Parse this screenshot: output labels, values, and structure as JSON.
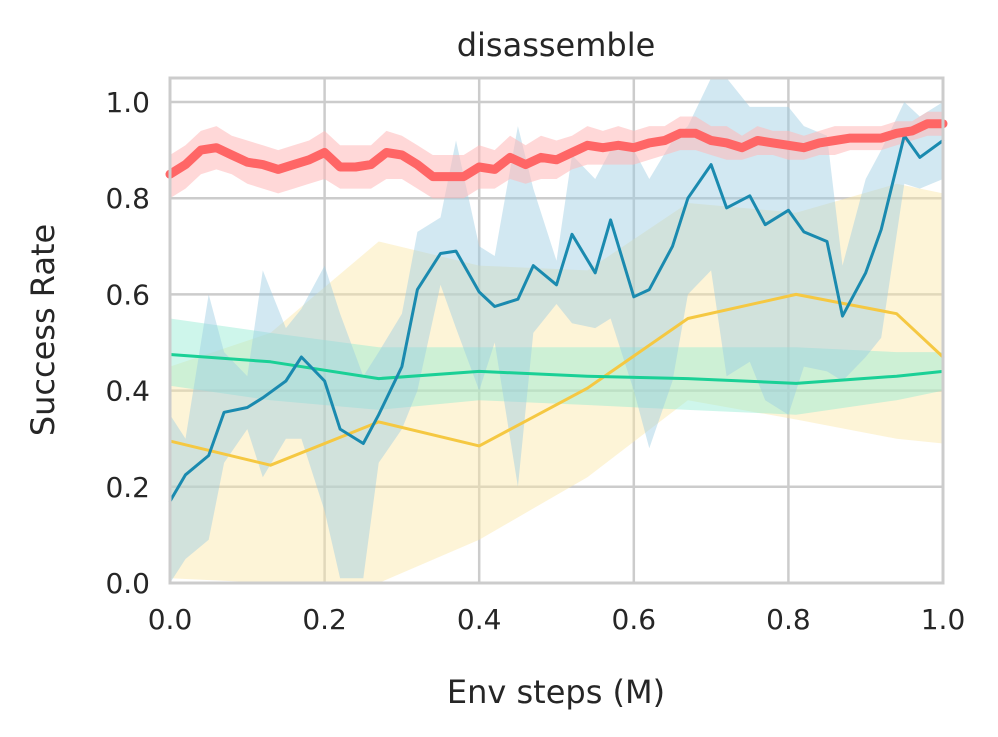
{
  "chart_data": {
    "type": "line",
    "title": "disassemble",
    "xlabel": "Env steps (M)",
    "ylabel": "Success Rate",
    "xlim": [
      0,
      1
    ],
    "ylim": [
      0,
      1.05
    ],
    "xticks": [
      "0.0",
      "0.2",
      "0.4",
      "0.6",
      "0.8",
      "1.0"
    ],
    "yticks": [
      "0.0",
      "0.2",
      "0.4",
      "0.6",
      "0.8",
      "1.0"
    ],
    "grid": true,
    "legend": "none",
    "series": [
      {
        "name": "yellow",
        "color": "#f5c842",
        "band_color": "#fbe7a6",
        "x": [
          0.0,
          0.13,
          0.27,
          0.4,
          0.54,
          0.67,
          0.81,
          0.94,
          1.0
        ],
        "y": [
          0.295,
          0.245,
          0.335,
          0.285,
          0.405,
          0.55,
          0.6,
          0.56,
          0.47
        ],
        "lower": [
          0.01,
          0.0,
          0.0,
          0.09,
          0.22,
          0.38,
          0.34,
          0.3,
          0.29
        ],
        "upper": [
          0.45,
          0.52,
          0.71,
          0.66,
          0.65,
          0.79,
          0.77,
          0.83,
          0.81
        ]
      },
      {
        "name": "green",
        "color": "#1ad096",
        "band_color": "#92ebd2",
        "x": [
          0.0,
          0.13,
          0.27,
          0.4,
          0.54,
          0.67,
          0.81,
          0.94,
          1.0
        ],
        "y": [
          0.475,
          0.46,
          0.425,
          0.44,
          0.43,
          0.425,
          0.415,
          0.43,
          0.44
        ],
        "lower": [
          0.41,
          0.38,
          0.36,
          0.38,
          0.37,
          0.36,
          0.35,
          0.38,
          0.4
        ],
        "upper": [
          0.55,
          0.52,
          0.49,
          0.49,
          0.49,
          0.49,
          0.49,
          0.48,
          0.48
        ]
      },
      {
        "name": "blue",
        "color": "#1a8aaf",
        "band_color": "#9ccde2",
        "x": [
          0.0,
          0.02,
          0.05,
          0.07,
          0.1,
          0.12,
          0.15,
          0.17,
          0.2,
          0.22,
          0.25,
          0.27,
          0.3,
          0.32,
          0.35,
          0.37,
          0.4,
          0.42,
          0.45,
          0.47,
          0.5,
          0.52,
          0.55,
          0.57,
          0.6,
          0.62,
          0.65,
          0.67,
          0.7,
          0.72,
          0.75,
          0.77,
          0.8,
          0.82,
          0.85,
          0.87,
          0.9,
          0.92,
          0.95,
          0.97,
          1.0
        ],
        "y": [
          0.17,
          0.225,
          0.265,
          0.355,
          0.365,
          0.385,
          0.42,
          0.47,
          0.42,
          0.32,
          0.29,
          0.35,
          0.45,
          0.61,
          0.685,
          0.69,
          0.605,
          0.575,
          0.59,
          0.66,
          0.62,
          0.725,
          0.645,
          0.755,
          0.595,
          0.61,
          0.7,
          0.8,
          0.87,
          0.78,
          0.805,
          0.745,
          0.775,
          0.73,
          0.71,
          0.555,
          0.645,
          0.735,
          0.93,
          0.885,
          0.92
        ],
        "lower": [
          0.0,
          0.05,
          0.09,
          0.25,
          0.32,
          0.22,
          0.3,
          0.3,
          0.15,
          0.01,
          0.01,
          0.25,
          0.32,
          0.4,
          0.62,
          0.53,
          0.4,
          0.5,
          0.2,
          0.52,
          0.58,
          0.54,
          0.53,
          0.55,
          0.4,
          0.28,
          0.42,
          0.6,
          0.65,
          0.43,
          0.46,
          0.38,
          0.35,
          0.45,
          0.44,
          0.42,
          0.47,
          0.51,
          0.83,
          0.82,
          0.84
        ],
        "upper": [
          0.35,
          0.3,
          0.6,
          0.48,
          0.43,
          0.65,
          0.53,
          0.57,
          0.66,
          0.56,
          0.43,
          0.48,
          0.56,
          0.73,
          0.76,
          0.92,
          0.7,
          0.68,
          0.95,
          0.82,
          0.67,
          0.89,
          0.84,
          0.9,
          0.9,
          0.84,
          0.92,
          0.95,
          1.05,
          1.05,
          0.99,
          0.99,
          0.99,
          0.95,
          0.93,
          0.66,
          0.84,
          0.9,
          1.0,
          0.97,
          1.0
        ]
      },
      {
        "name": "red",
        "color": "#ff6666",
        "band_color": "#ffb8b8",
        "x": [
          0.0,
          0.02,
          0.04,
          0.06,
          0.08,
          0.1,
          0.12,
          0.14,
          0.16,
          0.18,
          0.2,
          0.22,
          0.24,
          0.26,
          0.28,
          0.3,
          0.32,
          0.34,
          0.36,
          0.38,
          0.4,
          0.42,
          0.44,
          0.46,
          0.48,
          0.5,
          0.52,
          0.54,
          0.56,
          0.58,
          0.6,
          0.62,
          0.64,
          0.66,
          0.68,
          0.7,
          0.72,
          0.74,
          0.76,
          0.78,
          0.8,
          0.82,
          0.84,
          0.86,
          0.88,
          0.9,
          0.92,
          0.94,
          0.96,
          0.98,
          1.0
        ],
        "y": [
          0.85,
          0.87,
          0.9,
          0.905,
          0.89,
          0.875,
          0.87,
          0.86,
          0.87,
          0.88,
          0.895,
          0.865,
          0.865,
          0.87,
          0.895,
          0.89,
          0.87,
          0.845,
          0.845,
          0.845,
          0.865,
          0.86,
          0.885,
          0.87,
          0.885,
          0.88,
          0.895,
          0.91,
          0.905,
          0.91,
          0.905,
          0.915,
          0.92,
          0.935,
          0.935,
          0.92,
          0.915,
          0.905,
          0.92,
          0.915,
          0.91,
          0.905,
          0.915,
          0.92,
          0.925,
          0.925,
          0.925,
          0.935,
          0.94,
          0.955,
          0.955
        ],
        "lower": [
          0.8,
          0.82,
          0.85,
          0.86,
          0.85,
          0.83,
          0.82,
          0.81,
          0.82,
          0.83,
          0.84,
          0.82,
          0.82,
          0.82,
          0.84,
          0.84,
          0.82,
          0.8,
          0.8,
          0.8,
          0.82,
          0.82,
          0.84,
          0.83,
          0.84,
          0.84,
          0.86,
          0.87,
          0.87,
          0.87,
          0.87,
          0.88,
          0.89,
          0.9,
          0.9,
          0.89,
          0.88,
          0.88,
          0.89,
          0.89,
          0.88,
          0.88,
          0.89,
          0.89,
          0.9,
          0.9,
          0.9,
          0.91,
          0.92,
          0.93,
          0.93
        ],
        "upper": [
          0.89,
          0.91,
          0.94,
          0.95,
          0.93,
          0.92,
          0.91,
          0.9,
          0.91,
          0.92,
          0.94,
          0.91,
          0.91,
          0.91,
          0.94,
          0.93,
          0.91,
          0.89,
          0.89,
          0.89,
          0.91,
          0.9,
          0.93,
          0.91,
          0.93,
          0.92,
          0.93,
          0.95,
          0.94,
          0.95,
          0.94,
          0.95,
          0.95,
          0.97,
          0.97,
          0.95,
          0.95,
          0.93,
          0.95,
          0.94,
          0.94,
          0.93,
          0.94,
          0.95,
          0.95,
          0.95,
          0.95,
          0.96,
          0.96,
          0.98,
          0.98
        ]
      }
    ]
  }
}
